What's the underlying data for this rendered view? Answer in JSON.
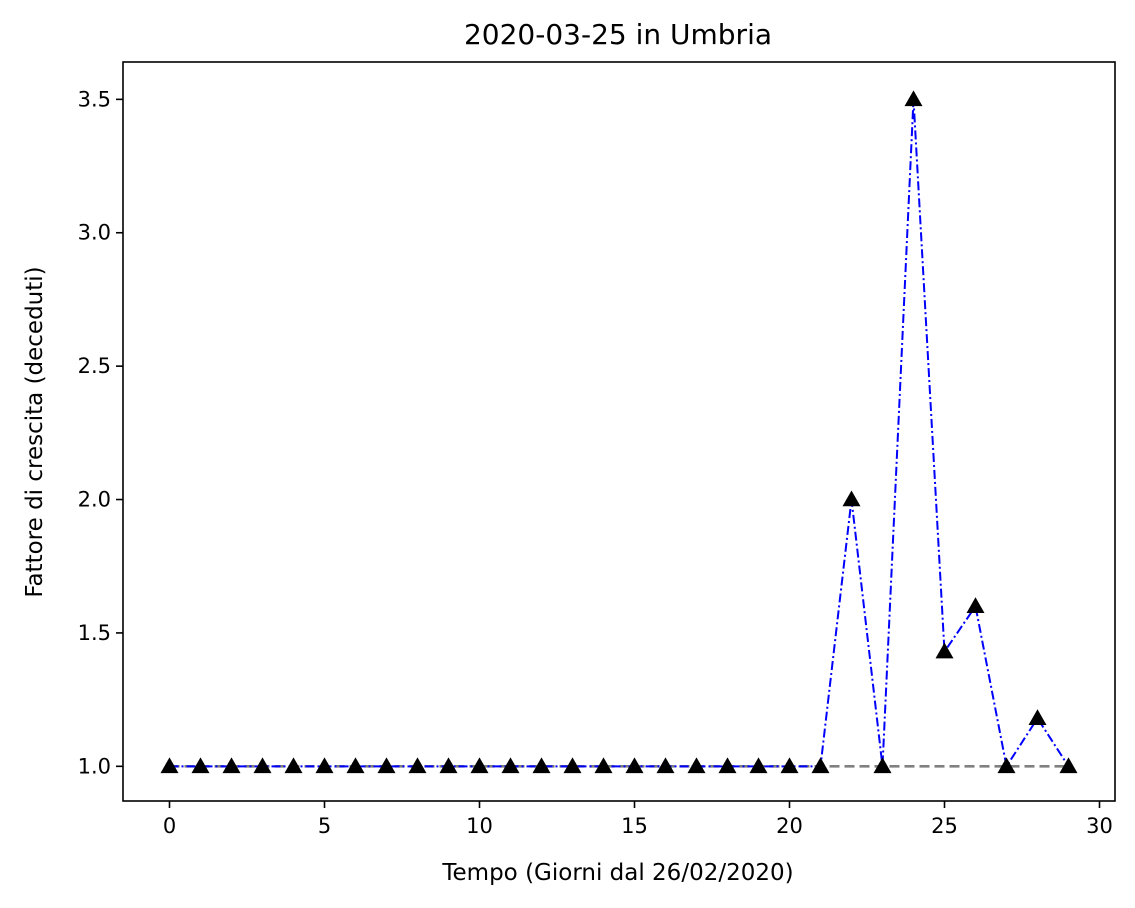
{
  "chart_data": {
    "type": "line",
    "title": "2020-03-25 in Umbria",
    "xlabel": "Tempo (Giorni dal 26/02/2020)",
    "ylabel": "Fattore di crescita (deceduti)",
    "xlim": [
      -1.5,
      30.5
    ],
    "ylim": [
      0.87,
      3.64
    ],
    "x_ticks": [
      0,
      5,
      10,
      15,
      20,
      25,
      30
    ],
    "y_ticks": [
      1.0,
      1.5,
      2.0,
      2.5,
      3.0,
      3.5
    ],
    "grid": false,
    "series": [
      {
        "line_color": "#0000ff",
        "marker_color": "#000000",
        "line_style": "dashdot",
        "marker": "triangle-up",
        "x": [
          0,
          1,
          2,
          3,
          4,
          5,
          6,
          7,
          8,
          9,
          10,
          11,
          12,
          13,
          14,
          15,
          16,
          17,
          18,
          19,
          20,
          21,
          22,
          23,
          24,
          25,
          26,
          27,
          28,
          29
        ],
        "values": [
          1.0,
          1.0,
          1.0,
          1.0,
          1.0,
          1.0,
          1.0,
          1.0,
          1.0,
          1.0,
          1.0,
          1.0,
          1.0,
          1.0,
          1.0,
          1.0,
          1.0,
          1.0,
          1.0,
          1.0,
          1.0,
          1.0,
          2.0,
          1.0,
          3.5,
          1.43,
          1.6,
          1.0,
          1.18,
          1.0
        ]
      }
    ],
    "reference_line": {
      "y": 1.0,
      "x_range": [
        0,
        29
      ],
      "color": "#808080",
      "line_style": "dashed"
    }
  }
}
